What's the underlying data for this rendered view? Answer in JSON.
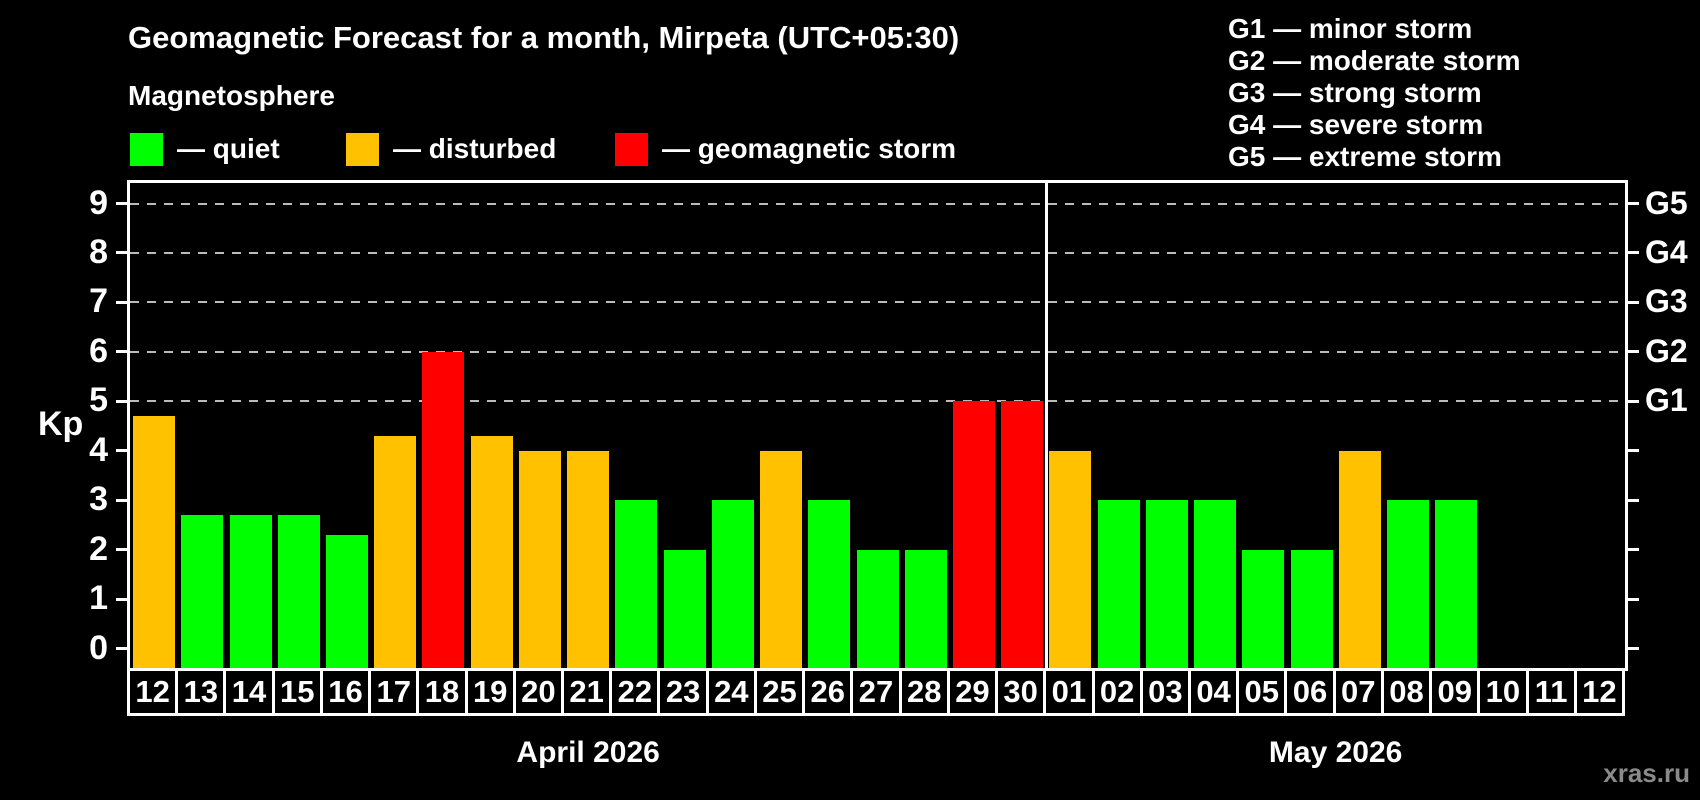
{
  "header": {
    "title": "Geomagnetic Forecast for a month, Mirpeta (UTC+05:30)",
    "subtitle": "Magnetosphere"
  },
  "legend": {
    "items": [
      {
        "key": "quiet",
        "label": "— quiet"
      },
      {
        "key": "disturbed",
        "label": "— disturbed"
      },
      {
        "key": "storm",
        "label": "— geomagnetic storm"
      }
    ]
  },
  "gscale_legend": {
    "lines": [
      "G1 — minor storm",
      "G2 — moderate storm",
      "G3 — strong storm",
      "G4 — severe storm",
      "G5 — extreme storm"
    ]
  },
  "colors": {
    "quiet": "#00FF00",
    "disturbed": "#FFC100",
    "storm": "#FF0000",
    "background": "#000000",
    "grid": "#BBBBBB",
    "axis": "#FFFFFF",
    "watermark": "#8A8A8A"
  },
  "watermark": "xras.ru",
  "chart_data": {
    "type": "bar",
    "title": "Geomagnetic Forecast for a month, Mirpeta (UTC+05:30)",
    "subtitle": "Magnetosphere",
    "ylabel": "Kp",
    "ylim": [
      0,
      9.4
    ],
    "yticks": [
      0,
      1,
      2,
      3,
      4,
      5,
      6,
      7,
      8,
      9
    ],
    "gridlines_at": [
      5,
      6,
      7,
      8,
      9
    ],
    "grid": "dashed horizontal at Kp 5-9 only",
    "right_axis_labels": [
      {
        "kp": 5,
        "label": "G1"
      },
      {
        "kp": 6,
        "label": "G2"
      },
      {
        "kp": 7,
        "label": "G3"
      },
      {
        "kp": 8,
        "label": "G4"
      },
      {
        "kp": 9,
        "label": "G5"
      }
    ],
    "legend_position": "top-left row of swatches; G-scale legend top-right",
    "months": [
      {
        "label": "April 2026",
        "days": [
          {
            "day": "12",
            "kp": 4.7,
            "level": "disturbed"
          },
          {
            "day": "13",
            "kp": 2.7,
            "level": "quiet"
          },
          {
            "day": "14",
            "kp": 2.7,
            "level": "quiet"
          },
          {
            "day": "15",
            "kp": 2.7,
            "level": "quiet"
          },
          {
            "day": "16",
            "kp": 2.3,
            "level": "quiet"
          },
          {
            "day": "17",
            "kp": 4.3,
            "level": "disturbed"
          },
          {
            "day": "18",
            "kp": 6.0,
            "level": "storm"
          },
          {
            "day": "19",
            "kp": 4.3,
            "level": "disturbed"
          },
          {
            "day": "20",
            "kp": 4.0,
            "level": "disturbed"
          },
          {
            "day": "21",
            "kp": 4.0,
            "level": "disturbed"
          },
          {
            "day": "22",
            "kp": 3.0,
            "level": "quiet"
          },
          {
            "day": "23",
            "kp": 2.0,
            "level": "quiet"
          },
          {
            "day": "24",
            "kp": 3.0,
            "level": "quiet"
          },
          {
            "day": "25",
            "kp": 4.0,
            "level": "disturbed"
          },
          {
            "day": "26",
            "kp": 3.0,
            "level": "quiet"
          },
          {
            "day": "27",
            "kp": 2.0,
            "level": "quiet"
          },
          {
            "day": "28",
            "kp": 2.0,
            "level": "quiet"
          },
          {
            "day": "29",
            "kp": 5.0,
            "level": "storm"
          },
          {
            "day": "30",
            "kp": 5.0,
            "level": "storm"
          }
        ]
      },
      {
        "label": "May 2026",
        "days": [
          {
            "day": "01",
            "kp": 4.0,
            "level": "disturbed"
          },
          {
            "day": "02",
            "kp": 3.0,
            "level": "quiet"
          },
          {
            "day": "03",
            "kp": 3.0,
            "level": "quiet"
          },
          {
            "day": "04",
            "kp": 3.0,
            "level": "quiet"
          },
          {
            "day": "05",
            "kp": 2.0,
            "level": "quiet"
          },
          {
            "day": "06",
            "kp": 2.0,
            "level": "quiet"
          },
          {
            "day": "07",
            "kp": 4.0,
            "level": "disturbed"
          },
          {
            "day": "08",
            "kp": 3.0,
            "level": "quiet"
          },
          {
            "day": "09",
            "kp": 3.0,
            "level": "quiet"
          },
          {
            "day": "10",
            "kp": null,
            "level": null
          },
          {
            "day": "11",
            "kp": null,
            "level": null
          },
          {
            "day": "12",
            "kp": null,
            "level": null
          }
        ]
      }
    ]
  }
}
